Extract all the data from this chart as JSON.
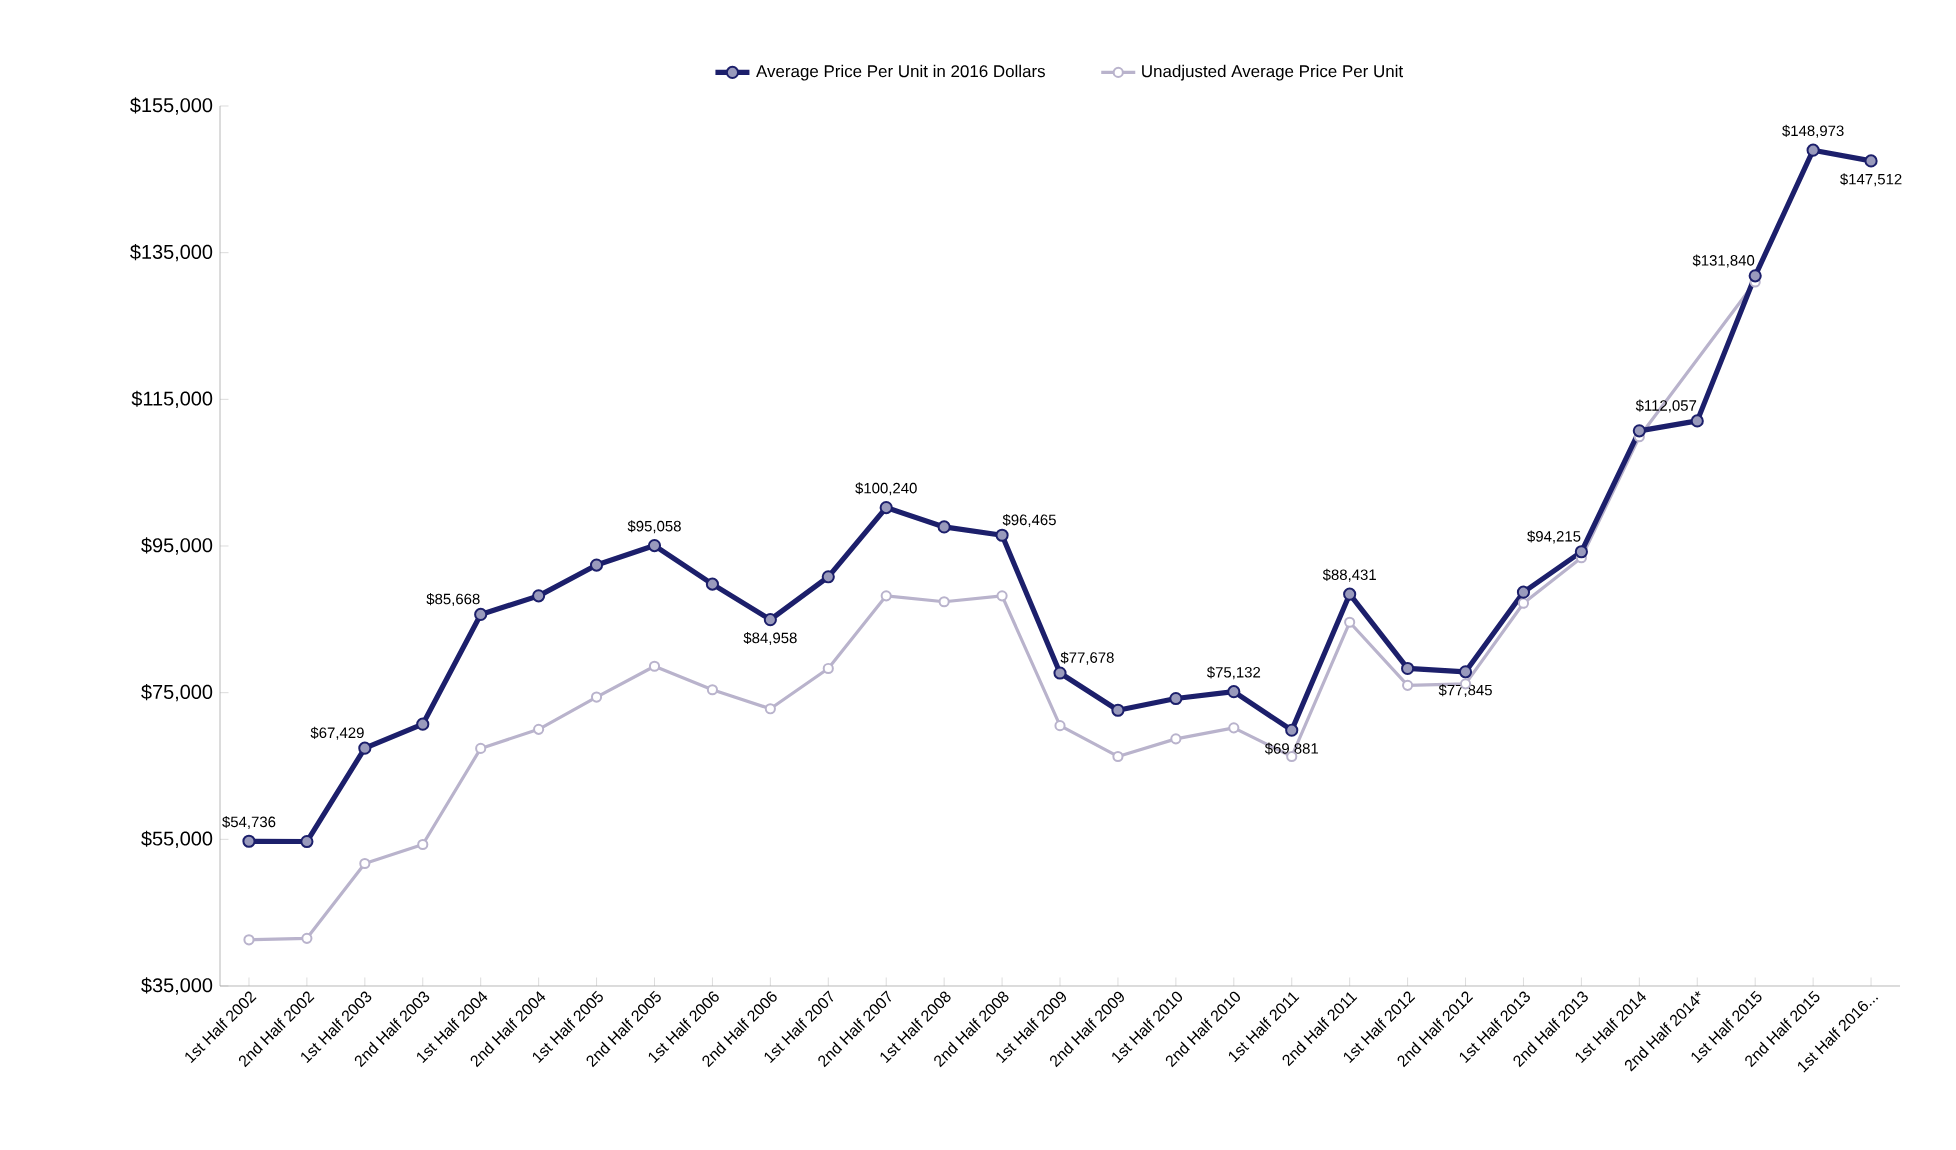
{
  "chart_data": {
    "type": "line",
    "categories": [
      "1st Half 2002",
      "2nd Half 2002",
      "1st Half 2003",
      "2nd Half 2003",
      "1st Half 2004",
      "2nd Half 2004",
      "1st Half 2005",
      "2nd Half 2005",
      "1st Half 2006",
      "2nd Half 2006",
      "1st Half 2007",
      "2nd Half 2007",
      "1st Half 2008",
      "2nd Half 2008",
      "1st Half 2009",
      "2nd Half 2009",
      "1st Half 2010",
      "2nd Half 2010",
      "1st Half 2011",
      "2nd Half 2011",
      "1st Half 2012",
      "2nd Half 2012",
      "1st Half 2013",
      "2nd Half 2013",
      "1st Half 2014",
      "2nd Half 2014*",
      "1st Half 2015",
      "2nd Half 2015",
      "1st Half 2016..."
    ],
    "series": [
      {
        "name": "Average Price Per Unit in 2016 Dollars",
        "color": "#1c1f6b",
        "values": [
          54736,
          54700,
          67429,
          70700,
          85668,
          88200,
          92400,
          95058,
          89800,
          84958,
          90800,
          100240,
          97600,
          96465,
          77678,
          72600,
          74200,
          75132,
          69881,
          88431,
          78300,
          77845,
          88700,
          94215,
          110700,
          112057,
          131840,
          148973,
          147512
        ],
        "value_labels": [
          "$54,736",
          null,
          "$67,429",
          null,
          "$85,668",
          null,
          null,
          "$95,058",
          null,
          "$84,958",
          null,
          "$100,240",
          null,
          "$96,465",
          "$77,678",
          null,
          null,
          "$75,132",
          "$69,881",
          "$88,431",
          null,
          "$77,845",
          null,
          "$94,215",
          null,
          "$112,057",
          "$131,840",
          "$148,973",
          "$147,512"
        ]
      },
      {
        "name": "Unadjusted Average Price Per Unit",
        "color": "#b9b3cc",
        "values": [
          41300,
          41500,
          51700,
          54300,
          67400,
          70000,
          74400,
          78600,
          75400,
          72800,
          78300,
          88200,
          87400,
          88200,
          70500,
          66300,
          68700,
          70200,
          66300,
          84600,
          76000,
          76200,
          87200,
          93400,
          109900,
          null,
          131000,
          null,
          null
        ]
      }
    ],
    "ylim": [
      35000,
      155000
    ],
    "yticks": [
      {
        "value": 35000,
        "label": "$35,000"
      },
      {
        "value": 55000,
        "label": "$55,000"
      },
      {
        "value": 75000,
        "label": "$75,000"
      },
      {
        "value": 95000,
        "label": "$95,000"
      },
      {
        "value": 115000,
        "label": "$115,000"
      },
      {
        "value": 135000,
        "label": "$135,000"
      },
      {
        "value": 155000,
        "label": "$155,000"
      }
    ],
    "legend": "top",
    "grid": false,
    "marker": "circle",
    "line_style": "solid"
  }
}
